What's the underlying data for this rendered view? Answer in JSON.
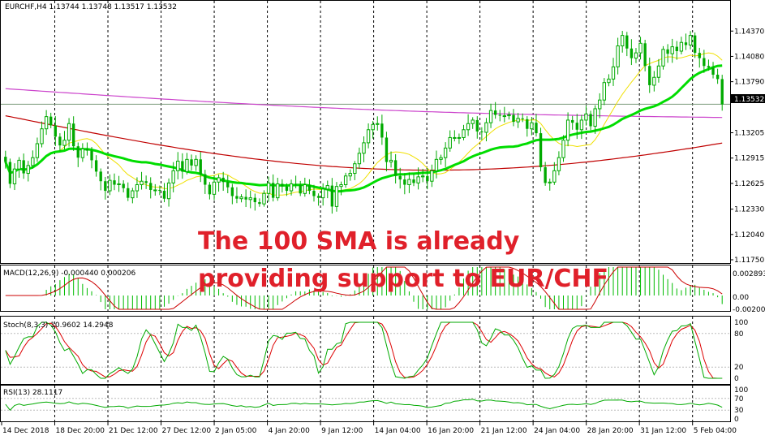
{
  "chart_data": {
    "type": "candlestick-with-indicators",
    "main": {
      "header": "EURCHF,H4  1.13744 1.13748 1.13517 1.13532",
      "price_ticks": [
        "1.14370",
        "1.14080",
        "1.13790",
        "1.13532",
        "1.13205",
        "1.12915",
        "1.12625",
        "1.12330",
        "1.12040",
        "1.11750"
      ],
      "current_price": "1.13532",
      "ylim": [
        1.1175,
        1.1467
      ],
      "close_series": [
        1.1287,
        1.1262,
        1.1279,
        1.1289,
        1.1274,
        1.1283,
        1.1292,
        1.1308,
        1.1325,
        1.1339,
        1.1329,
        1.1316,
        1.1306,
        1.1312,
        1.1331,
        1.1305,
        1.1292,
        1.1302,
        1.13,
        1.1289,
        1.1276,
        1.1265,
        1.1254,
        1.1266,
        1.1261,
        1.1262,
        1.1257,
        1.1246,
        1.1254,
        1.1261,
        1.1265,
        1.1263,
        1.1255,
        1.1255,
        1.1254,
        1.1245,
        1.1263,
        1.1277,
        1.1288,
        1.1276,
        1.129,
        1.1283,
        1.129,
        1.1273,
        1.1261,
        1.125,
        1.1264,
        1.1269,
        1.1264,
        1.1258,
        1.1248,
        1.1245,
        1.1247,
        1.1244,
        1.1246,
        1.1241,
        1.1239,
        1.1251,
        1.1263,
        1.1246,
        1.1262,
        1.1259,
        1.1254,
        1.1262,
        1.1261,
        1.1251,
        1.1261,
        1.1254,
        1.1248,
        1.1246,
        1.1256,
        1.126,
        1.1236,
        1.1259,
        1.1261,
        1.1271,
        1.1274,
        1.1285,
        1.1297,
        1.1309,
        1.1324,
        1.133,
        1.1331,
        1.1315,
        1.1287,
        1.1289,
        1.1271,
        1.1267,
        1.1261,
        1.1267,
        1.1263,
        1.127,
        1.1271,
        1.1265,
        1.1277,
        1.129,
        1.1292,
        1.1303,
        1.1315,
        1.1315,
        1.1315,
        1.1324,
        1.1331,
        1.1335,
        1.1322,
        1.1321,
        1.1332,
        1.1346,
        1.1341,
        1.134,
        1.134,
        1.1341,
        1.1333,
        1.1337,
        1.1336,
        1.1325,
        1.1332,
        1.132,
        1.1281,
        1.1263,
        1.1264,
        1.1277,
        1.1292,
        1.1312,
        1.1335,
        1.1332,
        1.1324,
        1.1335,
        1.1342,
        1.1328,
        1.1348,
        1.1358,
        1.1378,
        1.1382,
        1.1396,
        1.142,
        1.1432,
        1.1417,
        1.1406,
        1.1412,
        1.1423,
        1.1397,
        1.1375,
        1.1384,
        1.1397,
        1.1416,
        1.1411,
        1.1419,
        1.1414,
        1.1424,
        1.1421,
        1.1432,
        1.1412,
        1.1406,
        1.1397,
        1.1395,
        1.1387,
        1.1382,
        1.1353
      ],
      "sma_yellow_start": 1.1275,
      "sma_yellow_end": 1.1377,
      "sma_green_start": 1.13,
      "sma_green_end": 1.1353,
      "sma_magenta_start": 1.1371,
      "sma_magenta_end": 1.1338,
      "sma_red_start": 1.134,
      "sma_red_end": 1.1336
    },
    "macd": {
      "header": "MACD(12,26,9) -0.000440 0.000206",
      "ticks": [
        "0.002893",
        "0.00",
        "-0.002009"
      ]
    },
    "stoch": {
      "header": "Stoch(8,3,3) 10.9602 14.2948",
      "ticks": [
        "100",
        "80",
        "20",
        "0"
      ]
    },
    "rsi": {
      "header": "RSI(13) 28.1117",
      "ticks": [
        "100",
        "70",
        "30",
        "0"
      ]
    },
    "x_ticks": [
      "14 Dec 2018",
      "18 Dec 20:00",
      "21 Dec 12:00",
      "27 Dec 12:00",
      "2 Jan 05:00",
      "4 Jan 20:00",
      "9 Jan 12:00",
      "14 Jan 04:00",
      "16 Jan 20:00",
      "21 Jan 12:00",
      "24 Jan 04:00",
      "28 Jan 20:00",
      "31 Jan 12:00",
      "5 Feb 04:00"
    ],
    "annotation": [
      "The 100 SMA is already",
      "providing support to EUR/CHF"
    ],
    "colors": {
      "up": "#00aa00",
      "down": "#00aa00",
      "sma_green": "#00dd00",
      "sma_yellow": "#f0e000",
      "sma_magenta": "#cc44cc",
      "sma_red": "#c00000",
      "annotation": "#e0202a",
      "stoch_main": "#00aa00",
      "stoch_signal": "#dd0000",
      "macd_hist": "#00bb00",
      "macd_signal": "#cc0000"
    }
  }
}
